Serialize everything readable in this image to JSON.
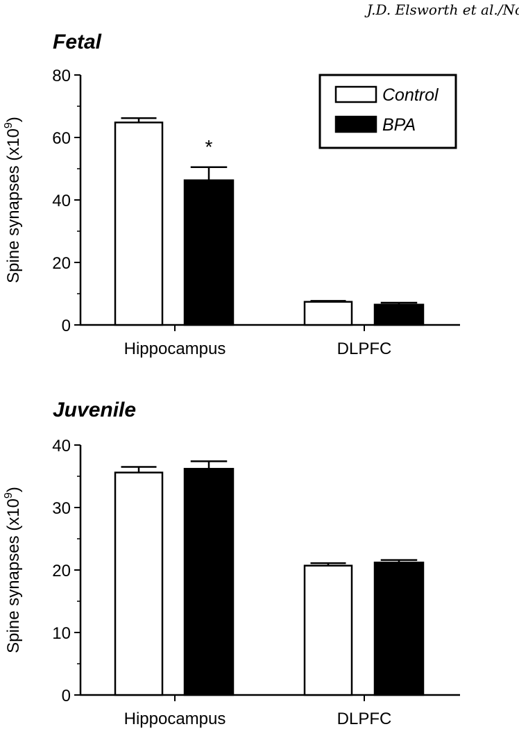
{
  "header": {
    "running_head": "J.D. Elsworth et al./No"
  },
  "chart_data": [
    {
      "type": "bar",
      "title": "Fetal",
      "ylabel": "Spine synapses (x10",
      "ylabel_exp": "9",
      "ylabel_close": ")",
      "categories": [
        "Hippocampus",
        "DLPFC"
      ],
      "ylim": [
        0,
        80
      ],
      "yticks": [
        0,
        20,
        40,
        60,
        80
      ],
      "series": [
        {
          "name": "Control",
          "values": [
            64.8,
            7.4
          ],
          "errors": [
            1.4,
            0.3
          ],
          "fill": "#ffffff"
        },
        {
          "name": "BPA",
          "values": [
            46.3,
            6.5
          ],
          "errors": [
            4.2,
            0.6
          ],
          "fill": "#000000"
        }
      ],
      "annotations": [
        {
          "text": "*",
          "category": "Hippocampus",
          "series": "BPA"
        }
      ],
      "legend": {
        "position": "top-right",
        "entries": [
          "Control",
          "BPA"
        ]
      },
      "grid": false
    },
    {
      "type": "bar",
      "title": "Juvenile",
      "ylabel": "Spine synapses (x10",
      "ylabel_exp": "9",
      "ylabel_close": ")",
      "categories": [
        "Hippocampus",
        "DLPFC"
      ],
      "ylim": [
        0,
        40
      ],
      "yticks": [
        0,
        10,
        20,
        30,
        40
      ],
      "series": [
        {
          "name": "Control",
          "values": [
            35.6,
            20.7
          ],
          "errors": [
            0.9,
            0.4
          ],
          "fill": "#ffffff"
        },
        {
          "name": "BPA",
          "values": [
            36.2,
            21.2
          ],
          "errors": [
            1.2,
            0.4
          ],
          "fill": "#000000"
        }
      ],
      "annotations": [],
      "grid": false
    }
  ]
}
